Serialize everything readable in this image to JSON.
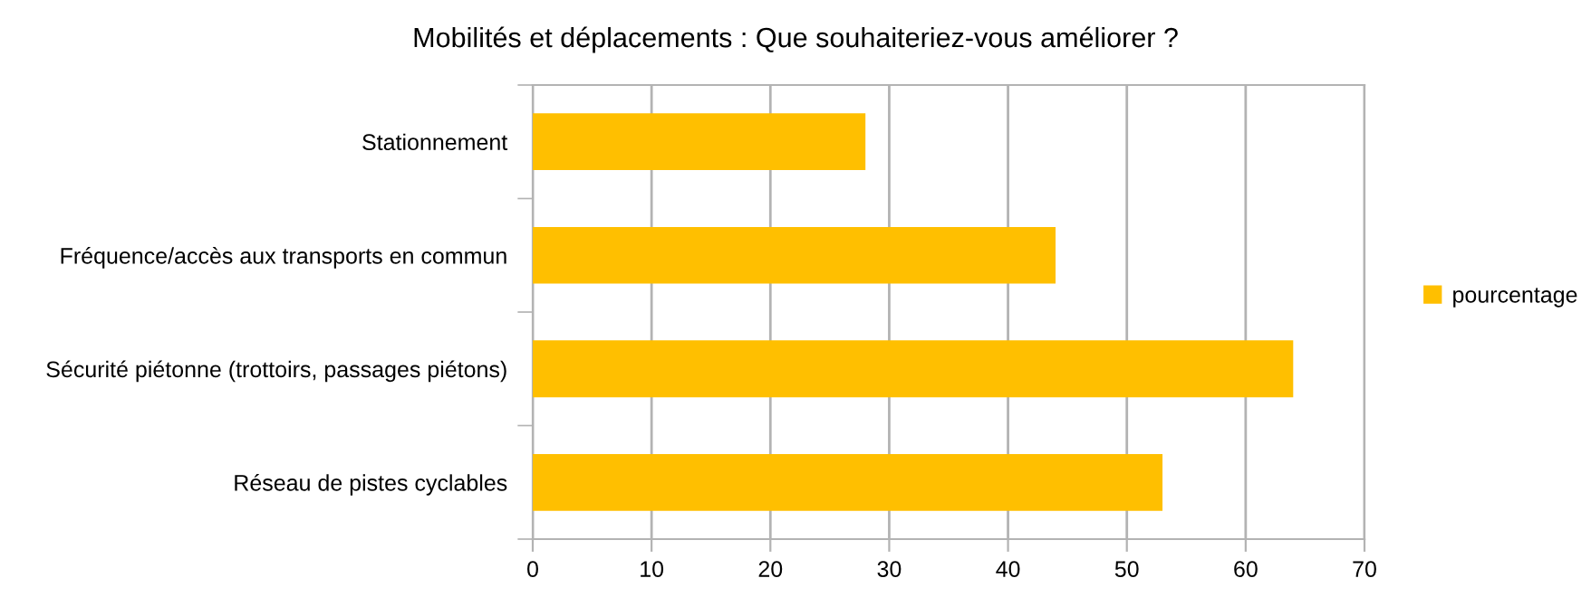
{
  "chart_data": {
    "type": "bar",
    "orientation": "horizontal",
    "title": "Mobilités et déplacements : Que souhaiteriez-vous améliorer ?",
    "categories": [
      "Stationnement",
      "Fréquence/accès aux transports en commun",
      "Sécurité piétonne (trottoirs, passages piétons)",
      "Réseau de pistes cyclables"
    ],
    "series": [
      {
        "name": "pourcentage",
        "color": "#ffbf00",
        "values": [
          28,
          44,
          64,
          53
        ]
      }
    ],
    "xlim": [
      0,
      70
    ],
    "xticks": [
      0,
      10,
      20,
      30,
      40,
      50,
      60,
      70
    ],
    "grid": "x",
    "legend": "right"
  }
}
